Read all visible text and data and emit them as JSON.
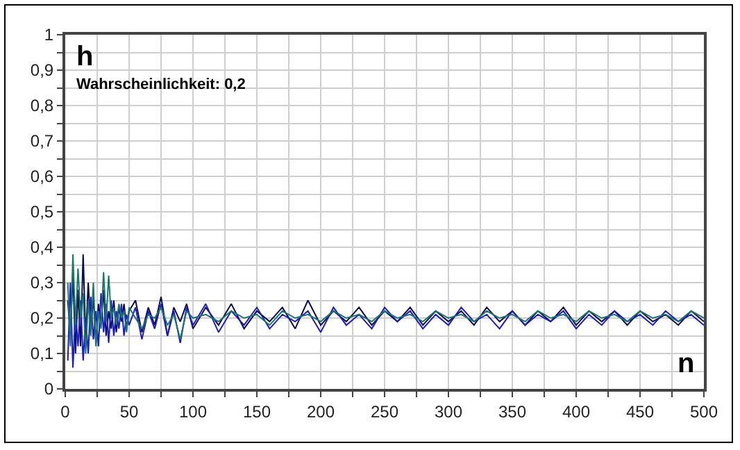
{
  "chart_data": {
    "type": "line",
    "xlabel": "n",
    "ylabel": "h",
    "annotations": [
      "Wahrscheinlichkeit: 0,2"
    ],
    "x": [
      2,
      4,
      6,
      8,
      10,
      12,
      14,
      16,
      18,
      20,
      22,
      24,
      26,
      28,
      30,
      32,
      34,
      36,
      38,
      40,
      42,
      44,
      46,
      48,
      50,
      55,
      60,
      65,
      70,
      75,
      80,
      85,
      90,
      95,
      100,
      110,
      120,
      130,
      140,
      150,
      160,
      170,
      180,
      190,
      200,
      210,
      220,
      230,
      240,
      250,
      260,
      270,
      280,
      290,
      300,
      310,
      320,
      330,
      340,
      350,
      360,
      370,
      380,
      390,
      400,
      410,
      420,
      430,
      440,
      450,
      460,
      470,
      480,
      490,
      500
    ],
    "series": [
      {
        "color": "#0a0a55",
        "values": [
          0.25,
          0.15,
          0.33,
          0.1,
          0.28,
          0.12,
          0.38,
          0.14,
          0.3,
          0.16,
          0.26,
          0.13,
          0.24,
          0.18,
          0.28,
          0.15,
          0.22,
          0.17,
          0.25,
          0.16,
          0.23,
          0.19,
          0.24,
          0.17,
          0.22,
          0.25,
          0.16,
          0.23,
          0.18,
          0.26,
          0.15,
          0.23,
          0.19,
          0.24,
          0.17,
          0.23,
          0.18,
          0.24,
          0.17,
          0.22,
          0.19,
          0.23,
          0.17,
          0.25,
          0.18,
          0.22,
          0.19,
          0.23,
          0.18,
          0.22,
          0.19,
          0.23,
          0.18,
          0.22,
          0.19,
          0.22,
          0.18,
          0.23,
          0.19,
          0.22,
          0.18,
          0.22,
          0.19,
          0.23,
          0.18,
          0.22,
          0.19,
          0.22,
          0.18,
          0.22,
          0.19,
          0.21,
          0.18,
          0.22,
          0.19
        ]
      },
      {
        "color": "#1a1ad0",
        "values": [
          0.08,
          0.3,
          0.06,
          0.22,
          0.12,
          0.25,
          0.08,
          0.2,
          0.1,
          0.26,
          0.14,
          0.22,
          0.12,
          0.27,
          0.16,
          0.24,
          0.13,
          0.25,
          0.15,
          0.22,
          0.17,
          0.24,
          0.15,
          0.21,
          0.18,
          0.23,
          0.14,
          0.22,
          0.17,
          0.24,
          0.15,
          0.22,
          0.13,
          0.23,
          0.18,
          0.24,
          0.16,
          0.22,
          0.18,
          0.23,
          0.17,
          0.21,
          0.19,
          0.22,
          0.16,
          0.23,
          0.18,
          0.21,
          0.17,
          0.23,
          0.19,
          0.22,
          0.17,
          0.21,
          0.18,
          0.23,
          0.19,
          0.21,
          0.17,
          0.22,
          0.18,
          0.21,
          0.19,
          0.22,
          0.17,
          0.21,
          0.18,
          0.22,
          0.19,
          0.21,
          0.18,
          0.22,
          0.19,
          0.21,
          0.18
        ]
      },
      {
        "color": "#17786a",
        "values": [
          0.3,
          0.12,
          0.38,
          0.18,
          0.34,
          0.2,
          0.27,
          0.1,
          0.25,
          0.15,
          0.3,
          0.12,
          0.22,
          0.17,
          0.33,
          0.19,
          0.32,
          0.2,
          0.23,
          0.18,
          0.24,
          0.2,
          0.22,
          0.16,
          0.23,
          0.2,
          0.17,
          0.21,
          0.2,
          0.23,
          0.18,
          0.21,
          0.14,
          0.22,
          0.2,
          0.21,
          0.19,
          0.22,
          0.2,
          0.21,
          0.18,
          0.22,
          0.2,
          0.21,
          0.19,
          0.22,
          0.2,
          0.21,
          0.19,
          0.22,
          0.2,
          0.21,
          0.19,
          0.22,
          0.2,
          0.21,
          0.19,
          0.22,
          0.2,
          0.21,
          0.19,
          0.22,
          0.2,
          0.21,
          0.19,
          0.22,
          0.2,
          0.21,
          0.19,
          0.22,
          0.2,
          0.21,
          0.19,
          0.22,
          0.2
        ]
      }
    ],
    "xlim": [
      0,
      500
    ],
    "xticks": [
      0,
      {
        "value": 25,
        "label": null
      },
      50,
      {
        "value": 75,
        "label": null
      },
      100,
      {
        "value": 125,
        "label": null
      },
      150,
      {
        "value": 175,
        "label": null
      },
      200,
      {
        "value": 225,
        "label": null
      },
      250,
      {
        "value": 275,
        "label": null
      },
      300,
      {
        "value": 325,
        "label": null
      },
      350,
      {
        "value": 375,
        "label": null
      },
      400,
      {
        "value": 425,
        "label": null
      },
      450,
      {
        "value": 475,
        "label": null
      },
      500
    ],
    "ylim": [
      0,
      1
    ],
    "yticks": [
      0,
      {
        "value": 0.05,
        "label": null
      },
      {
        "value": 0.1,
        "label": "0,1"
      },
      {
        "value": 0.15,
        "label": null
      },
      {
        "value": 0.2,
        "label": "0,2"
      },
      {
        "value": 0.25,
        "label": null
      },
      {
        "value": 0.3,
        "label": "0,3"
      },
      {
        "value": 0.35,
        "label": null
      },
      {
        "value": 0.4,
        "label": "0,4"
      },
      {
        "value": 0.45,
        "label": null
      },
      {
        "value": 0.5,
        "label": "0,5"
      },
      {
        "value": 0.55,
        "label": null
      },
      {
        "value": 0.6,
        "label": "0,6"
      },
      {
        "value": 0.65,
        "label": null
      },
      {
        "value": 0.7,
        "label": "0,7"
      },
      {
        "value": 0.75,
        "label": null
      },
      {
        "value": 0.8,
        "label": "0,8"
      },
      {
        "value": 0.85,
        "label": null
      },
      {
        "value": 0.9,
        "label": "0,9"
      },
      {
        "value": 0.95,
        "label": null
      },
      1
    ],
    "grid": true,
    "marker": "none",
    "line_style": "solid"
  }
}
